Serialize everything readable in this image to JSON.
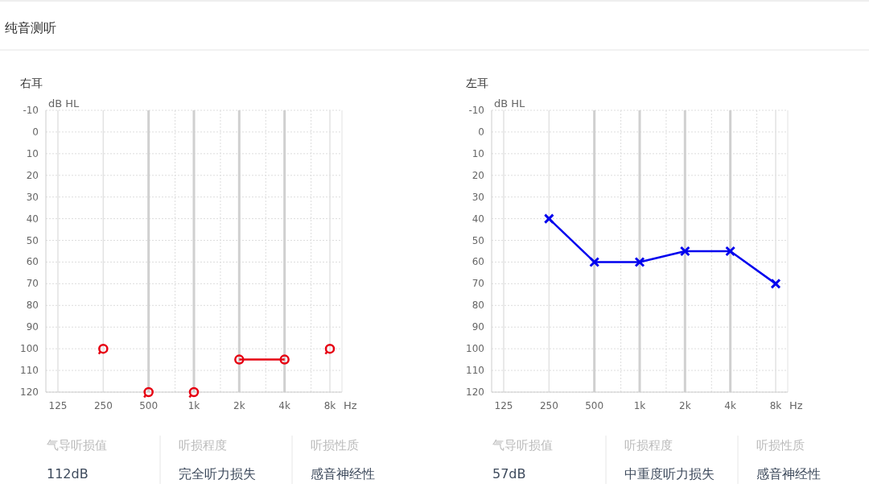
{
  "chart_data": [
    {
      "type": "line",
      "title": "纯音测听",
      "subtitle": "右耳",
      "xlabel": "Hz",
      "ylabel": "dB HL",
      "categories": [
        "125",
        "250",
        "500",
        "1k",
        "2k",
        "4k",
        "8k"
      ],
      "series": [
        {
          "type": "scatter",
          "color": "#e60012",
          "values": [
            null,
            100,
            120,
            120,
            null,
            null,
            100
          ]
        },
        {
          "type": "line",
          "color": "#e60012",
          "values": [
            null,
            null,
            null,
            null,
            105,
            105,
            null
          ]
        }
      ],
      "ylim": [
        120,
        -10
      ],
      "yticks": [
        -10,
        0,
        10,
        20,
        30,
        40,
        50,
        60,
        70,
        80,
        90,
        100,
        110,
        120
      ],
      "grid": true,
      "marker": "circle",
      "annotations": [
        "气导听损值",
        "112dB",
        "听损程度",
        "完全听力损失",
        "听损性质",
        "感音神经性"
      ]
    },
    {
      "type": "line",
      "subtitle": "左耳",
      "xlabel": "Hz",
      "ylabel": "dB HL",
      "categories": [
        "125",
        "250",
        "500",
        "1k",
        "2k",
        "4k",
        "8k"
      ],
      "series": [
        {
          "color": "#0000ee",
          "values": [
            null,
            40,
            60,
            60,
            55,
            55,
            70
          ]
        }
      ],
      "ylim": [
        120,
        -10
      ],
      "yticks": [
        -10,
        0,
        10,
        20,
        30,
        40,
        50,
        60,
        70,
        80,
        90,
        100,
        110,
        120
      ],
      "grid": true,
      "marker": "cross",
      "annotations": [
        "气导听损值",
        "57dB",
        "听损程度",
        "中重度听力损失",
        "听损性质",
        "感音神经性"
      ]
    }
  ]
}
